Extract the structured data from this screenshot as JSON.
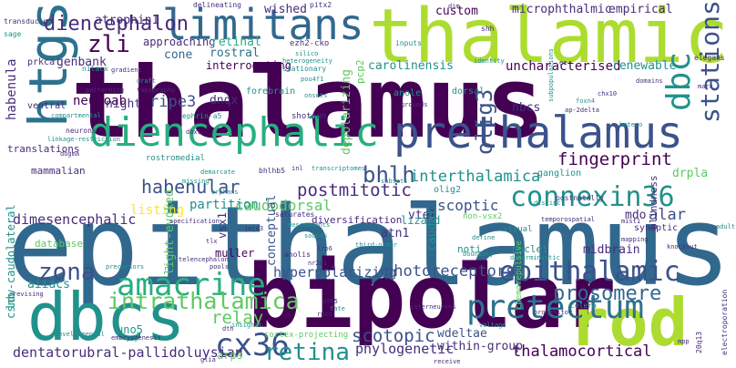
{
  "palette": {
    "dark_purple": "#440154",
    "indigo": "#472d7b",
    "blue": "#3b528b",
    "steel": "#2c728e",
    "teal": "#21918c",
    "green": "#28ae80",
    "light_green": "#5ec962",
    "lime": "#addc30",
    "yellow": "#fde725"
  },
  "words": [
    {
      "text": "thalamus",
      "color": "#440154"
    },
    {
      "text": "epithalamus",
      "color": "#31688e"
    },
    {
      "text": "thalamic",
      "color": "#addc30"
    },
    {
      "text": "bipolar",
      "color": "#440154"
    },
    {
      "text": "rod",
      "color": "#addc30"
    },
    {
      "text": "dbcs",
      "color": "#21918c"
    },
    {
      "text": "prethalamus",
      "color": "#3b528b"
    },
    {
      "text": "diencephalic",
      "color": "#28ae80"
    },
    {
      "text": "limitans",
      "color": "#31688e"
    },
    {
      "text": "htgs",
      "color": "#2c728e"
    },
    {
      "text": "pretectum",
      "color": "#2c728e"
    },
    {
      "text": "amacrine",
      "color": "#28ae80"
    },
    {
      "text": "connexin36",
      "color": "#21918c"
    },
    {
      "text": "epithalamic",
      "color": "#3b528b"
    },
    {
      "text": "cx36",
      "color": "#3b528b"
    },
    {
      "text": "intrathalamica",
      "color": "#5ec962"
    },
    {
      "text": "retina",
      "color": "#21918c"
    },
    {
      "text": "prosomere",
      "color": "#31688e"
    },
    {
      "text": "stations",
      "color": "#3b528b"
    },
    {
      "text": "dbc",
      "color": "#21918c"
    },
    {
      "text": "diencephalon",
      "color": "#472d7b"
    },
    {
      "text": "zli",
      "color": "#440154"
    },
    {
      "text": "zona",
      "color": "#3b528b"
    },
    {
      "text": "bhlh",
      "color": "#3b528b"
    },
    {
      "text": "olig3",
      "color": "#3b528b"
    },
    {
      "text": "hyperpolarizing",
      "color": "#3b528b"
    },
    {
      "text": "photoreceptors",
      "color": "#3b528b"
    },
    {
      "text": "fingerprint",
      "color": "#440154"
    },
    {
      "text": "habenular",
      "color": "#3b528b"
    },
    {
      "text": "postmitotic",
      "color": "#472d7b"
    },
    {
      "text": "dimesencephalic",
      "color": "#472d7b"
    },
    {
      "text": "scotopic",
      "color": "#3b528b"
    },
    {
      "text": "phylogenetic",
      "color": "#472d7b"
    },
    {
      "text": "thalamocortical",
      "color": "#440154"
    },
    {
      "text": "dentatorubral-pallidoluysian",
      "color": "#472d7b"
    },
    {
      "text": "relay",
      "color": "#5ec962"
    },
    {
      "text": "uncharacterised",
      "color": "#440154"
    },
    {
      "text": "ripe3",
      "color": "#3b528b"
    },
    {
      "text": "caudodorsal",
      "color": "#5ec962"
    },
    {
      "text": "habenula",
      "color": "#472d7b"
    },
    {
      "text": "neuroab",
      "color": "#440154"
    },
    {
      "text": "interthalamica",
      "color": "#21918c"
    },
    {
      "text": "partition",
      "color": "#21918c"
    },
    {
      "text": "listing",
      "color": "#fde725"
    },
    {
      "text": "scoptic",
      "color": "#3b528b"
    },
    {
      "text": "alar",
      "color": "#3b528b"
    },
    {
      "text": "mdo",
      "color": "#472d7b"
    },
    {
      "text": "wdeltae",
      "color": "#3b528b"
    },
    {
      "text": "within-group",
      "color": "#472d7b"
    },
    {
      "text": "atrophin1",
      "color": "#472d7b"
    },
    {
      "text": "wished",
      "color": "#472d7b"
    },
    {
      "text": "custom",
      "color": "#440154"
    },
    {
      "text": "microphthalmic",
      "color": "#472d7b"
    },
    {
      "text": "empirical",
      "color": "#472d7b"
    },
    {
      "text": "genbank",
      "color": "#472d7b"
    },
    {
      "text": "approaching",
      "color": "#472d7b"
    },
    {
      "text": "retinal",
      "color": "#28ae80"
    },
    {
      "text": "rostral",
      "color": "#2c728e"
    },
    {
      "text": "interrogating",
      "color": "#440154"
    },
    {
      "text": "cone",
      "color": "#31688e"
    },
    {
      "text": "night",
      "color": "#472d7b"
    },
    {
      "text": "dnqx",
      "color": "#472d7b"
    },
    {
      "text": "depolarizing",
      "color": "#5ec962"
    },
    {
      "text": "carolinensis",
      "color": "#21918c"
    },
    {
      "text": "renewable",
      "color": "#21918c"
    },
    {
      "text": "hbcs",
      "color": "#472d7b"
    },
    {
      "text": "drpla",
      "color": "#5ec962"
    },
    {
      "text": "light-evoked",
      "color": "#5ec962"
    },
    {
      "text": "vsx1",
      "color": "#472d7b"
    },
    {
      "text": "conceptual",
      "color": "#3b528b"
    },
    {
      "text": "atn1",
      "color": "#472d7b"
    },
    {
      "text": "vtel",
      "color": "#472d7b"
    },
    {
      "text": "caudal",
      "color": "#21918c"
    },
    {
      "text": "midbrain",
      "color": "#472d7b"
    },
    {
      "text": "aiiacs",
      "color": "#21918c"
    },
    {
      "text": "uno5",
      "color": "#21918c"
    },
    {
      "text": "arps",
      "color": "#5ec962"
    },
    {
      "text": "csnb",
      "color": "#21918c"
    },
    {
      "text": "low-caudolateral",
      "color": "#21918c"
    },
    {
      "text": "muller",
      "color": "#440154"
    },
    {
      "text": "database",
      "color": "#5ec962"
    },
    {
      "text": "mammalian",
      "color": "#472d7b"
    },
    {
      "text": "translations",
      "color": "#472d7b"
    },
    {
      "text": "prkca",
      "color": "#472d7b"
    },
    {
      "text": "ventral",
      "color": "#472d7b"
    },
    {
      "text": "transducin",
      "color": "#472d7b"
    },
    {
      "text": "sage",
      "color": "#21918c"
    },
    {
      "text": "delineating",
      "color": "#472d7b"
    },
    {
      "text": "pitx2",
      "color": "#472d7b"
    },
    {
      "text": "ezh2-cko",
      "color": "#472d7b"
    },
    {
      "text": "silico",
      "color": "#21918c"
    },
    {
      "text": "heterogeneity",
      "color": "#21918c"
    },
    {
      "text": "stationary",
      "color": "#21918c"
    },
    {
      "text": "pcp2",
      "color": "#5ec962"
    },
    {
      "text": "inputs",
      "color": "#21918c"
    },
    {
      "text": "shh",
      "color": "#472d7b"
    },
    {
      "text": "dorsal",
      "color": "#21918c"
    },
    {
      "text": "anole",
      "color": "#21918c"
    },
    {
      "text": "nuclei",
      "color": "#21918c"
    },
    {
      "text": "diversification",
      "color": "#472d7b"
    },
    {
      "text": "gradient",
      "color": "#472d7b"
    },
    {
      "text": "patterning",
      "color": "#472d7b"
    },
    {
      "text": "topography",
      "color": "#472d7b"
    },
    {
      "text": "ephrin-a5",
      "color": "#21918c"
    },
    {
      "text": "forebrain",
      "color": "#21918c"
    },
    {
      "text": "shotgun",
      "color": "#472d7b"
    },
    {
      "text": "lizard",
      "color": "#21918c"
    },
    {
      "text": "noti",
      "color": "#21918c"
    },
    {
      "text": "olig2",
      "color": "#21918c"
    },
    {
      "text": "ganglion",
      "color": "#21918c"
    },
    {
      "text": "synaptic",
      "color": "#472d7b"
    },
    {
      "text": "visual",
      "color": "#21918c"
    },
    {
      "text": "blindness",
      "color": "#472d7b"
    },
    {
      "text": "rostromedial",
      "color": "#21918c"
    },
    {
      "text": "demarcate",
      "color": "#21918c"
    },
    {
      "text": "missing",
      "color": "#21918c"
    },
    {
      "text": "saturates",
      "color": "#472d7b"
    },
    {
      "text": "elegans",
      "color": "#472d7b"
    },
    {
      "text": "mark",
      "color": "#472d7b"
    },
    {
      "text": "knockout",
      "color": "#472d7b"
    },
    {
      "text": "mapping",
      "color": "#472d7b"
    },
    {
      "text": "postnatally",
      "color": "#472d7b"
    },
    {
      "text": "chx10",
      "color": "#472d7b"
    },
    {
      "text": "domains",
      "color": "#472d7b"
    },
    {
      "text": "neurons",
      "color": "#472d7b"
    },
    {
      "text": "compartmental",
      "color": "#21918c"
    },
    {
      "text": "dogma",
      "color": "#472d7b"
    },
    {
      "text": "identity",
      "color": "#21918c"
    },
    {
      "text": "grounds",
      "color": "#472d7b"
    },
    {
      "text": "foxn4",
      "color": "#21918c"
    },
    {
      "text": "ap-2delta",
      "color": "#472d7b"
    },
    {
      "text": "ee",
      "color": "#472d7b"
    },
    {
      "text": "dim",
      "color": "#472d7b"
    },
    {
      "text": "inl",
      "color": "#472d7b"
    },
    {
      "text": "transcriptomes",
      "color": "#21918c"
    },
    {
      "text": "bhlhb5",
      "color": "#472d7b"
    },
    {
      "text": "pou4f1",
      "color": "#21918c"
    },
    {
      "text": "onsets",
      "color": "#21918c"
    },
    {
      "text": "nilacx",
      "color": "#21918c"
    },
    {
      "text": "draft",
      "color": "#21918c"
    },
    {
      "text": "linkage-restriction",
      "color": "#21918c"
    },
    {
      "text": "subsets",
      "color": "#21918c"
    },
    {
      "text": "descendents",
      "color": "#21918c"
    },
    {
      "text": "non-vsx2",
      "color": "#5ec962"
    },
    {
      "text": "define",
      "color": "#21918c"
    },
    {
      "text": "temporospatial",
      "color": "#472d7b"
    },
    {
      "text": "distinct",
      "color": "#21918c"
    },
    {
      "text": "specification",
      "color": "#472d7b"
    },
    {
      "text": "orphans",
      "color": "#21918c"
    },
    {
      "text": "sounds",
      "color": "#21918c"
    },
    {
      "text": "jmjd3",
      "color": "#472d7b"
    },
    {
      "text": "third-order",
      "color": "#21918c"
    },
    {
      "text": "deterministic",
      "color": "#21918c"
    },
    {
      "text": "chemorepulsive",
      "color": "#5ec962"
    },
    {
      "text": "mist1",
      "color": "#472d7b"
    },
    {
      "text": "boundary",
      "color": "#21918c"
    },
    {
      "text": "telencephalon",
      "color": "#472d7b"
    },
    {
      "text": "tlx",
      "color": "#472d7b"
    },
    {
      "text": "lrp6",
      "color": "#472d7b"
    },
    {
      "text": "nr2e1",
      "color": "#472d7b"
    },
    {
      "text": "anolis",
      "color": "#472d7b"
    },
    {
      "text": "interneurons",
      "color": "#472d7b"
    },
    {
      "text": "cortex-projecting",
      "color": "#5ec962"
    },
    {
      "text": "rpcs",
      "color": "#472d7b"
    },
    {
      "text": "ath5",
      "color": "#472d7b"
    },
    {
      "text": "fate",
      "color": "#21918c"
    },
    {
      "text": "celera",
      "color": "#21918c"
    },
    {
      "text": "progenitor",
      "color": "#472d7b"
    },
    {
      "text": "voltage",
      "color": "#21918c"
    },
    {
      "text": "precursors",
      "color": "#21918c"
    },
    {
      "text": "rbc",
      "color": "#21918c"
    },
    {
      "text": "pools",
      "color": "#472d7b"
    },
    {
      "text": "insights",
      "color": "#21918c"
    },
    {
      "text": "dth",
      "color": "#472d7b"
    },
    {
      "text": "developmental",
      "color": "#21918c"
    },
    {
      "text": "embryogenesis",
      "color": "#472d7b"
    },
    {
      "text": "revising",
      "color": "#472d7b"
    },
    {
      "text": "glia",
      "color": "#472d7b"
    },
    {
      "text": "receive",
      "color": "#472d7b"
    },
    {
      "text": "adult",
      "color": "#21918c"
    },
    {
      "text": "electroporation",
      "color": "#472d7b"
    },
    {
      "text": "20q13",
      "color": "#472d7b"
    },
    {
      "text": "dbx1",
      "color": "#472d7b"
    },
    {
      "text": "mpp",
      "color": "#472d7b"
    },
    {
      "text": "subpopulations",
      "color": "#21918c"
    },
    {
      "text": "hetero",
      "color": "#21918c"
    }
  ]
}
